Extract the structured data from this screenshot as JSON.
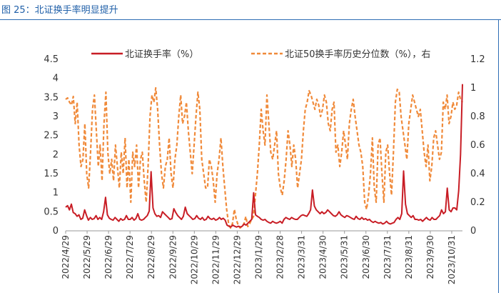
{
  "figure_title": "图 25：北证换手率明显提升",
  "chart_data": {
    "type": "line",
    "title": "北证换手率明显提升",
    "legend_position": "top",
    "grid": false,
    "x_tick_labels": [
      "2022/4/29",
      "2022/5/29",
      "2022/6/29",
      "2022/7/29",
      "2022/8/29",
      "2022/9/29",
      "2022/10/29",
      "2022/11/29",
      "2022/12/29",
      "2023/1/29",
      "2023/2/28",
      "2023/3/31",
      "2023/4/30",
      "2023/5/31",
      "2023/6/30",
      "2023/7/31",
      "2023/8/31",
      "2023/9/30",
      "2023/10/31"
    ],
    "y_left": {
      "min": 0,
      "max": 4.5,
      "ticks": [
        "0",
        "0.5",
        "1",
        "1.5",
        "2",
        "2.5",
        "3",
        "3.5",
        "4",
        "4.5"
      ]
    },
    "y_right": {
      "min": 0,
      "max": 1.2,
      "ticks": [
        "0",
        "0.2",
        "0.4",
        "0.6",
        "0.8",
        "1",
        "1.2"
      ]
    },
    "series": [
      {
        "name": "北证换手率（%）",
        "axis": "left",
        "style": "solid",
        "color": "#c81d25",
        "values": [
          0.62,
          0.66,
          0.55,
          0.7,
          0.48,
          0.45,
          0.38,
          0.42,
          0.3,
          0.33,
          0.55,
          0.4,
          0.28,
          0.35,
          0.3,
          0.32,
          0.4,
          0.3,
          0.35,
          0.3,
          0.5,
          0.88,
          0.42,
          0.33,
          0.3,
          0.28,
          0.35,
          0.3,
          0.25,
          0.32,
          0.28,
          0.3,
          0.4,
          0.3,
          0.3,
          0.35,
          0.28,
          0.32,
          0.45,
          0.3,
          0.28,
          0.3,
          0.35,
          0.4,
          0.52,
          1.55,
          0.6,
          0.45,
          0.38,
          0.4,
          0.35,
          0.5,
          0.45,
          0.4,
          0.35,
          0.3,
          0.32,
          0.58,
          0.48,
          0.4,
          0.35,
          0.3,
          0.38,
          0.62,
          0.45,
          0.4,
          0.35,
          0.3,
          0.32,
          0.4,
          0.33,
          0.3,
          0.35,
          0.28,
          0.3,
          0.38,
          0.32,
          0.3,
          0.33,
          0.28,
          0.3,
          0.35,
          0.3,
          0.33,
          0.28,
          0.15,
          0.12,
          0.1,
          0.15,
          0.12,
          0.1,
          0.12,
          0.1,
          0.12,
          0.18,
          0.15,
          0.2,
          0.25,
          0.3,
          1.0,
          0.42,
          0.38,
          0.35,
          0.3,
          0.28,
          0.3,
          0.25,
          0.22,
          0.2,
          0.25,
          0.22,
          0.2,
          0.22,
          0.25,
          0.2,
          0.3,
          0.35,
          0.32,
          0.3,
          0.35,
          0.32,
          0.3,
          0.3,
          0.35,
          0.4,
          0.42,
          0.4,
          0.38,
          0.45,
          0.55,
          1.07,
          0.65,
          0.55,
          0.5,
          0.45,
          0.5,
          0.45,
          0.48,
          0.55,
          0.5,
          0.45,
          0.4,
          0.38,
          0.42,
          0.5,
          0.42,
          0.38,
          0.35,
          0.4,
          0.38,
          0.35,
          0.32,
          0.3,
          0.38,
          0.32,
          0.3,
          0.35,
          0.3,
          0.32,
          0.28,
          0.3,
          0.25,
          0.22,
          0.25,
          0.22,
          0.2,
          0.22,
          0.18,
          0.2,
          0.25,
          0.2,
          0.18,
          0.2,
          0.22,
          0.3,
          0.35,
          0.3,
          0.45,
          1.57,
          0.7,
          0.45,
          0.4,
          0.35,
          0.4,
          0.3,
          0.3,
          0.28,
          0.3,
          0.25,
          0.3,
          0.35,
          0.3,
          0.28,
          0.35,
          0.3,
          0.3,
          0.35,
          0.4,
          0.55,
          0.45,
          0.5,
          1.12,
          0.55,
          0.5,
          0.6,
          0.6,
          0.55,
          1.05,
          2.0,
          3.85
        ]
      },
      {
        "name": "北证50换手率历史分位数（%），右",
        "axis": "right",
        "style": "dashed",
        "color": "#f08a3a",
        "values": [
          0.92,
          0.93,
          0.9,
          0.88,
          0.94,
          0.75,
          0.9,
          0.6,
          0.45,
          0.5,
          0.75,
          0.4,
          0.3,
          0.55,
          0.85,
          0.95,
          0.7,
          0.45,
          0.6,
          0.35,
          0.75,
          0.97,
          0.55,
          0.4,
          0.5,
          0.35,
          0.6,
          0.45,
          0.3,
          0.55,
          0.4,
          0.65,
          0.3,
          0.5,
          0.2,
          0.55,
          0.45,
          0.6,
          0.3,
          0.5,
          0.55,
          0.35,
          0.2,
          0.45,
          0.8,
          0.95,
          0.9,
          1.0,
          0.85,
          0.6,
          0.4,
          0.3,
          0.45,
          0.5,
          0.65,
          0.4,
          0.3,
          0.5,
          0.6,
          0.8,
          0.95,
          0.75,
          0.8,
          0.9,
          0.7,
          0.55,
          0.4,
          0.6,
          0.8,
          0.97,
          0.85,
          0.5,
          0.4,
          0.3,
          0.3,
          0.5,
          0.45,
          0.35,
          0.2,
          0.4,
          0.5,
          0.65,
          0.45,
          0.3,
          0.15,
          0.05,
          0.02,
          0.05,
          0.15,
          0.08,
          0.04,
          0.02,
          0.03,
          0.05,
          0.1,
          0.03,
          0.05,
          0.08,
          0.1,
          0.25,
          0.4,
          0.6,
          0.85,
          0.7,
          0.6,
          0.95,
          0.75,
          0.55,
          0.5,
          0.6,
          0.7,
          0.4,
          0.3,
          0.25,
          0.35,
          0.5,
          0.7,
          0.6,
          0.45,
          0.6,
          0.5,
          0.3,
          0.4,
          0.5,
          0.7,
          0.85,
          0.9,
          0.98,
          0.95,
          0.9,
          0.85,
          0.92,
          0.88,
          0.8,
          0.85,
          0.95,
          0.9,
          0.75,
          0.7,
          0.85,
          0.9,
          0.55,
          0.6,
          0.45,
          0.55,
          0.7,
          0.6,
          0.5,
          0.75,
          0.85,
          0.92,
          0.8,
          0.7,
          0.6,
          0.55,
          0.45,
          0.2,
          0.15,
          0.25,
          0.4,
          0.65,
          0.3,
          0.2,
          0.6,
          0.65,
          0.4,
          0.2,
          0.55,
          0.6,
          0.4,
          0.25,
          0.55,
          0.9,
          0.99,
          0.97,
          0.8,
          0.7,
          0.6,
          0.5,
          0.75,
          0.85,
          0.95,
          0.9,
          0.85,
          0.8,
          0.85,
          0.7,
          0.55,
          0.45,
          0.6,
          0.35,
          0.45,
          0.65,
          0.7,
          0.6,
          0.5,
          0.55,
          0.9,
          0.85,
          0.95,
          0.75,
          0.8,
          0.9,
          0.85,
          0.88,
          0.97,
          0.92,
          0.9
        ]
      }
    ]
  }
}
